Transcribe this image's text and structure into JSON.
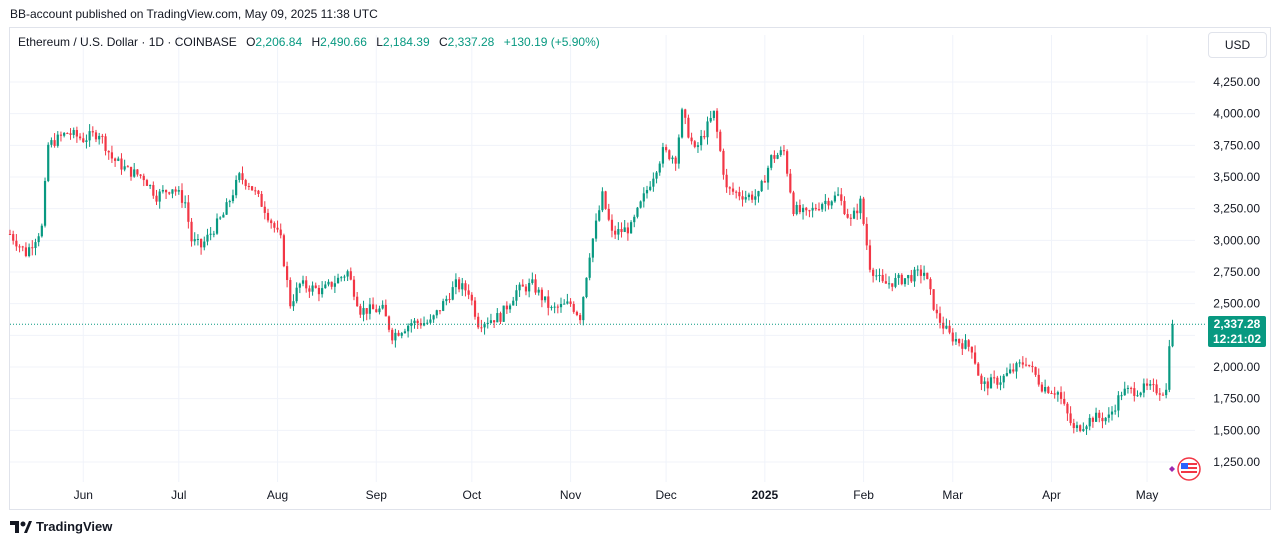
{
  "header": {
    "published": "BB-account published on TradingView.com, May 09, 2025 11:38 UTC"
  },
  "legend": {
    "symbol": "Ethereum / U.S. Dollar · 1D · COINBASE",
    "o_label": "O",
    "o": "2,206.84",
    "h_label": "H",
    "h": "2,490.66",
    "l_label": "L",
    "l": "2,184.39",
    "c_label": "C",
    "c": "2,337.28",
    "change": "+130.19 (+5.90%)"
  },
  "currency_button": "USD",
  "price_tag": {
    "price": "2,337.28",
    "countdown": "12:21:02"
  },
  "footer": {
    "brand": "TradingView"
  },
  "colors": {
    "up": "#089981",
    "down": "#f23645",
    "grid": "#f0f3fa",
    "text": "#131722"
  },
  "chart_data": {
    "type": "candlestick",
    "title": "Ethereum / U.S. Dollar · 1D · COINBASE",
    "y_ticks": [
      1250,
      1500,
      1750,
      2000,
      2250,
      2500,
      2750,
      3000,
      3250,
      3500,
      3750,
      4000,
      4250
    ],
    "y_tick_labels": [
      "1,250.00",
      "1,500.00",
      "1,750.00",
      "2,000.00",
      "2,250.00",
      "2,500.00",
      "2,750.00",
      "3,000.00",
      "3,250.00",
      "3,500.00",
      "3,750.00",
      "4,000.00",
      "4,250.00"
    ],
    "x_labels": [
      "Jun",
      "Jul",
      "Aug",
      "Sep",
      "Oct",
      "Nov",
      "Dec",
      "2025",
      "Feb",
      "Mar",
      "Apr",
      "May"
    ],
    "last_price": 2337.28,
    "grid": true,
    "close_path": [
      [
        "2024-05-09",
        3050
      ],
      [
        "2024-05-14",
        2900
      ],
      [
        "2024-05-19",
        3100
      ],
      [
        "2024-05-21",
        3750
      ],
      [
        "2024-05-27",
        3850
      ],
      [
        "2024-06-01",
        3800
      ],
      [
        "2024-06-06",
        3850
      ],
      [
        "2024-06-10",
        3650
      ],
      [
        "2024-06-15",
        3550
      ],
      [
        "2024-06-20",
        3500
      ],
      [
        "2024-06-24",
        3350
      ],
      [
        "2024-06-29",
        3420
      ],
      [
        "2024-07-03",
        3300
      ],
      [
        "2024-07-05",
        3000
      ],
      [
        "2024-07-08",
        2950
      ],
      [
        "2024-07-15",
        3200
      ],
      [
        "2024-07-20",
        3500
      ],
      [
        "2024-07-23",
        3450
      ],
      [
        "2024-07-28",
        3250
      ],
      [
        "2024-08-02",
        3000
      ],
      [
        "2024-08-05",
        2500
      ],
      [
        "2024-08-08",
        2650
      ],
      [
        "2024-08-15",
        2600
      ],
      [
        "2024-08-23",
        2750
      ],
      [
        "2024-08-27",
        2450
      ],
      [
        "2024-09-03",
        2450
      ],
      [
        "2024-09-06",
        2250
      ],
      [
        "2024-09-12",
        2350
      ],
      [
        "2024-09-18",
        2350
      ],
      [
        "2024-09-26",
        2650
      ],
      [
        "2024-09-30",
        2600
      ],
      [
        "2024-10-03",
        2350
      ],
      [
        "2024-10-10",
        2400
      ],
      [
        "2024-10-15",
        2600
      ],
      [
        "2024-10-20",
        2650
      ],
      [
        "2024-10-26",
        2450
      ],
      [
        "2024-11-01",
        2500
      ],
      [
        "2024-11-04",
        2400
      ],
      [
        "2024-11-07",
        2900
      ],
      [
        "2024-11-11",
        3350
      ],
      [
        "2024-11-14",
        3050
      ],
      [
        "2024-11-20",
        3100
      ],
      [
        "2024-11-25",
        3400
      ],
      [
        "2024-11-30",
        3700
      ],
      [
        "2024-12-04",
        3650
      ],
      [
        "2024-12-06",
        4000
      ],
      [
        "2024-12-10",
        3700
      ],
      [
        "2024-12-16",
        4000
      ],
      [
        "2024-12-20",
        3400
      ],
      [
        "2024-12-26",
        3350
      ],
      [
        "2024-12-30",
        3350
      ],
      [
        "2025-01-03",
        3650
      ],
      [
        "2025-01-07",
        3700
      ],
      [
        "2025-01-10",
        3250
      ],
      [
        "2025-01-14",
        3200
      ],
      [
        "2025-01-19",
        3300
      ],
      [
        "2025-01-24",
        3350
      ],
      [
        "2025-01-28",
        3150
      ],
      [
        "2025-01-31",
        3300
      ],
      [
        "2025-02-03",
        2800
      ],
      [
        "2025-02-07",
        2650
      ],
      [
        "2025-02-14",
        2700
      ],
      [
        "2025-02-20",
        2750
      ],
      [
        "2025-02-24",
        2400
      ],
      [
        "2025-02-28",
        2250
      ],
      [
        "2025-03-03",
        2200
      ],
      [
        "2025-03-07",
        2150
      ],
      [
        "2025-03-10",
        1850
      ],
      [
        "2025-03-16",
        1900
      ],
      [
        "2025-03-24",
        2050
      ],
      [
        "2025-03-29",
        1850
      ],
      [
        "2025-04-03",
        1800
      ],
      [
        "2025-04-08",
        1500
      ],
      [
        "2025-04-14",
        1600
      ],
      [
        "2025-04-19",
        1600
      ],
      [
        "2025-04-23",
        1800
      ],
      [
        "2025-05-01",
        1830
      ],
      [
        "2025-05-07",
        1810
      ],
      [
        "2025-05-08",
        2206.84
      ],
      [
        "2025-05-09",
        2337.28
      ]
    ]
  }
}
